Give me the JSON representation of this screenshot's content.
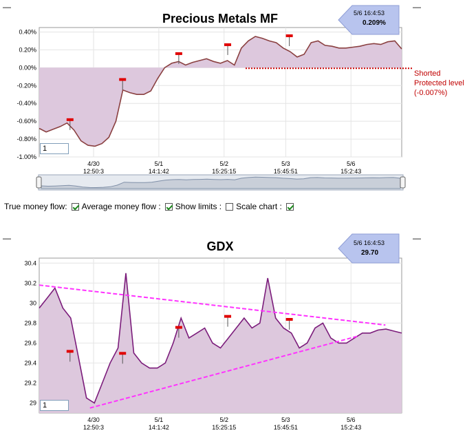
{
  "charts": [
    {
      "id": "top",
      "title": "Precious Metals MF",
      "badge": {
        "date": "5/6 16:4:53",
        "value": "0.209%"
      },
      "yticks": [
        "0.40%",
        "0.20%",
        "0.00%",
        "-0.20%",
        "-0.40%",
        "-0.60%",
        "-0.80%",
        "-1.00%"
      ],
      "xticks": [
        [
          "4/30",
          "12:50:3"
        ],
        [
          "5/1",
          "14:1:42"
        ],
        [
          "5/2",
          "15:25:15"
        ],
        [
          "5/3",
          "15:45:51"
        ],
        [
          "5/6",
          "15:2:43"
        ]
      ],
      "input_value": "1",
      "annotation": [
        "Shorted",
        "Protected level",
        "(-0.007%)"
      ]
    },
    {
      "id": "bottom",
      "title": "GDX",
      "badge": {
        "date": "5/6 16:4:53",
        "value": "29.70"
      },
      "yticks": [
        "30.4",
        "30.2",
        "30",
        "29.8",
        "29.6",
        "29.4",
        "29.2",
        "29"
      ],
      "xticks": [
        [
          "4/30",
          "12:50:3"
        ],
        [
          "5/1",
          "14:1:42"
        ],
        [
          "5/2",
          "15:25:15"
        ],
        [
          "5/3",
          "15:45:51"
        ],
        [
          "5/6",
          "15:2:43"
        ]
      ],
      "input_value": "1"
    }
  ],
  "controls": {
    "true_money_flow": "True money flow:",
    "average_money_flow": "Average money flow :",
    "show_limits": "Show limits :",
    "scale_chart": "Scale chart :",
    "states": {
      "true_money_flow": true,
      "average_money_flow": true,
      "show_limits": false,
      "scale_chart": true
    }
  },
  "colors": {
    "fill": "#ddc8dd",
    "top_line": "#8a4040",
    "bottom_line": "#7b1c7b",
    "trend": "#ff33ff",
    "protected": "#cc0000",
    "badge": "#b8c4ee"
  },
  "chart_data": [
    {
      "type": "line",
      "title": "Precious Metals MF",
      "ylabel": "",
      "ylim": [
        -1.0,
        0.45
      ],
      "protected_level": -0.007,
      "series": [
        {
          "values": [
            -0.68,
            -0.72,
            -0.69,
            -0.66,
            -0.62,
            -0.7,
            -0.82,
            -0.87,
            -0.88,
            -0.85,
            -0.78,
            -0.6,
            -0.25,
            -0.28,
            -0.3,
            -0.3,
            -0.26,
            -0.12,
            0.0,
            0.05,
            0.07,
            0.03,
            0.06,
            0.08,
            0.1,
            0.07,
            0.05,
            0.08,
            0.03,
            0.22,
            0.3,
            0.35,
            0.33,
            0.3,
            0.28,
            0.22,
            0.18,
            0.12,
            0.15,
            0.28,
            0.3,
            0.25,
            0.24,
            0.22,
            0.22,
            0.23,
            0.24,
            0.26,
            0.27,
            0.26,
            0.29,
            0.3,
            0.21
          ]
        }
      ],
      "flags_y": [
        -0.59,
        -0.14,
        0.15,
        0.25,
        0.35
      ]
    },
    {
      "type": "line",
      "title": "GDX",
      "ylabel": "",
      "ylim": [
        28.9,
        30.45
      ],
      "series": [
        {
          "values": [
            29.95,
            30.05,
            30.15,
            29.95,
            29.85,
            29.45,
            29.05,
            29.0,
            29.2,
            29.4,
            29.55,
            30.3,
            29.5,
            29.4,
            29.35,
            29.35,
            29.4,
            29.6,
            29.85,
            29.65,
            29.7,
            29.75,
            29.6,
            29.55,
            29.65,
            29.75,
            29.85,
            29.75,
            29.8,
            30.25,
            29.85,
            29.75,
            29.7,
            29.55,
            29.6,
            29.75,
            29.8,
            29.65,
            29.6,
            29.6,
            29.65,
            29.7,
            29.7,
            29.73,
            29.74,
            29.72,
            29.7
          ]
        }
      ],
      "trendlines": [
        [
          [
            0.0,
            30.18
          ],
          [
            0.955,
            29.78
          ]
        ],
        [
          [
            0.14,
            28.95
          ],
          [
            0.88,
            29.67
          ]
        ]
      ],
      "flags_y": [
        29.51,
        29.49,
        29.75,
        29.86,
        29.83
      ]
    }
  ]
}
